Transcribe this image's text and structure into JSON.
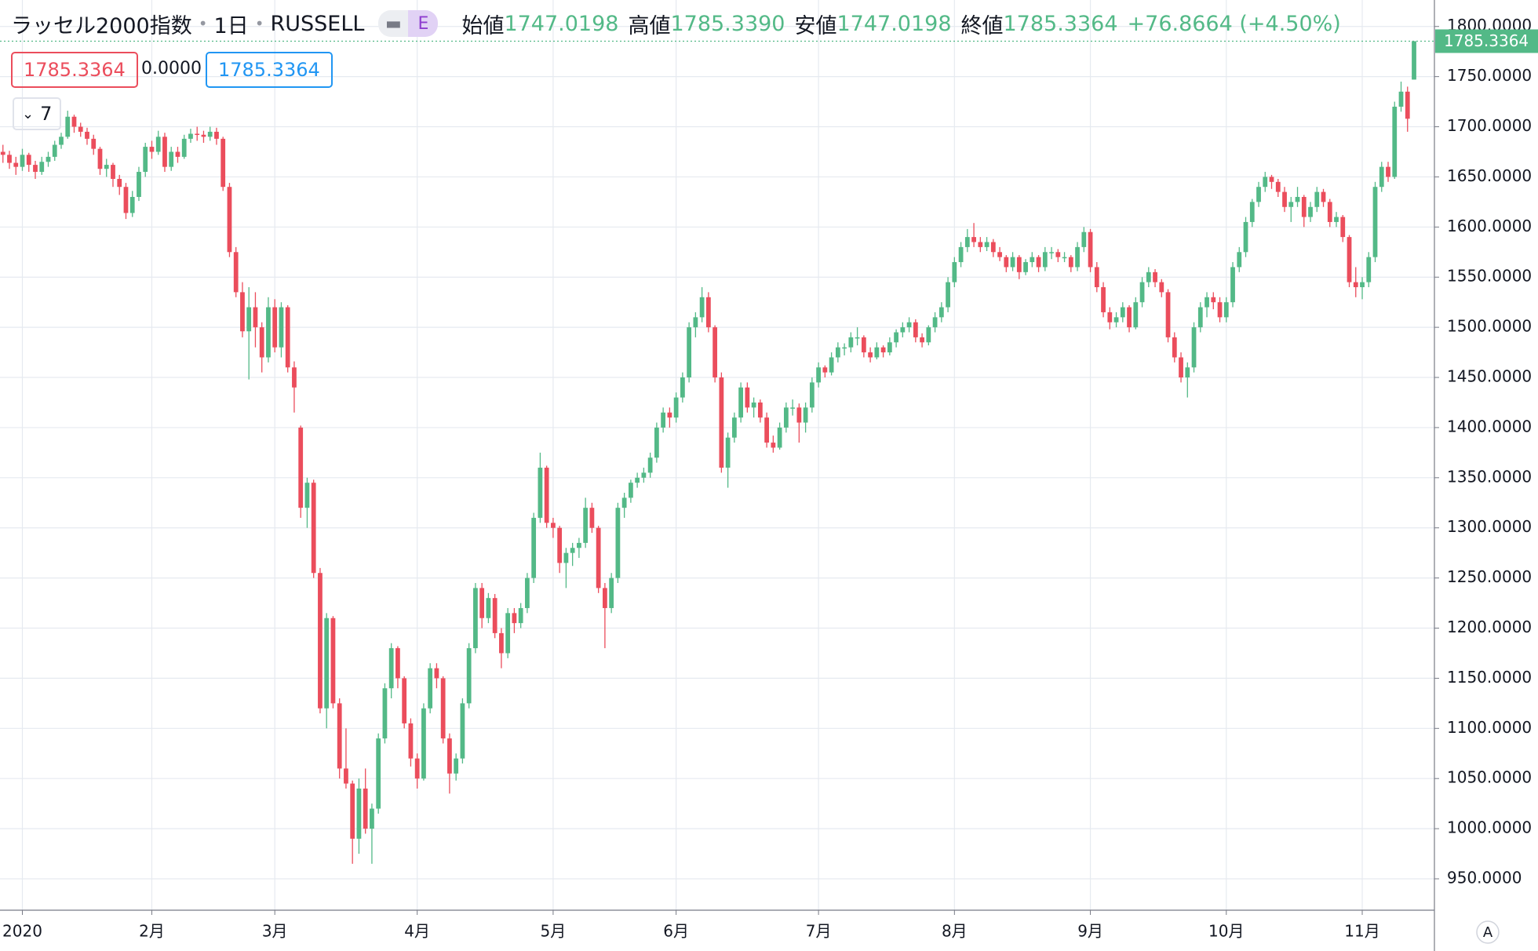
{
  "chart_data": {
    "type": "candlestick",
    "header": {
      "title": "ラッセル2000指数",
      "interval": "1日",
      "symbol": "RUSSELL",
      "badge": "E",
      "open_label": "始値",
      "open": "1747.0198",
      "high_label": "高値",
      "high": "1785.3390",
      "low_label": "安値",
      "low": "1747.0198",
      "close_label": "終値",
      "close": "1785.3364",
      "change": "+76.8664 (+4.50%)"
    },
    "inputs": [
      "1785.3364",
      "0.0000",
      "1785.3364"
    ],
    "collapse_count": "7",
    "scale_mode": "A",
    "up_color": "#53b987",
    "down_color": "#eb4d5c",
    "grid": true,
    "ylim": [
      918.7,
      1826.4
    ],
    "yticks": [
      {
        "value": 950,
        "label": "950.0000"
      },
      {
        "value": 1000,
        "label": "1000.0000"
      },
      {
        "value": 1050,
        "label": "1050.0000"
      },
      {
        "value": 1100,
        "label": "1100.0000"
      },
      {
        "value": 1150,
        "label": "1150.0000"
      },
      {
        "value": 1200,
        "label": "1200.0000"
      },
      {
        "value": 1250,
        "label": "1250.0000"
      },
      {
        "value": 1300,
        "label": "1300.0000"
      },
      {
        "value": 1350,
        "label": "1350.0000"
      },
      {
        "value": 1400,
        "label": "1400.0000"
      },
      {
        "value": 1450,
        "label": "1450.0000"
      },
      {
        "value": 1500,
        "label": "1500.0000"
      },
      {
        "value": 1550,
        "label": "1550.0000"
      },
      {
        "value": 1600,
        "label": "1600.0000"
      },
      {
        "value": 1650,
        "label": "1650.0000"
      },
      {
        "value": 1700,
        "label": "1700.0000"
      },
      {
        "value": 1750,
        "label": "1750.0000"
      },
      {
        "value": 1800,
        "label": "1800.0000"
      }
    ],
    "xticks": [
      {
        "value": 3,
        "label": "2020"
      },
      {
        "value": 23,
        "label": "2月"
      },
      {
        "value": 42,
        "label": "3月"
      },
      {
        "value": 64,
        "label": "4月"
      },
      {
        "value": 85,
        "label": "5月"
      },
      {
        "value": 104,
        "label": "6月"
      },
      {
        "value": 126,
        "label": "7月"
      },
      {
        "value": 147,
        "label": "8月"
      },
      {
        "value": 168,
        "label": "9月"
      },
      {
        "value": 189,
        "label": "10月"
      },
      {
        "value": 210,
        "label": "11月"
      }
    ],
    "ohlc": [
      [
        1675,
        1682,
        1664,
        1672
      ],
      [
        1672,
        1676,
        1658,
        1664
      ],
      [
        1664,
        1670,
        1652,
        1660
      ],
      [
        1660,
        1678,
        1656,
        1672
      ],
      [
        1672,
        1674,
        1655,
        1662
      ],
      [
        1662,
        1666,
        1648,
        1655
      ],
      [
        1655,
        1670,
        1652,
        1665
      ],
      [
        1665,
        1675,
        1660,
        1670
      ],
      [
        1670,
        1686,
        1666,
        1682
      ],
      [
        1682,
        1694,
        1678,
        1690
      ],
      [
        1690,
        1716,
        1688,
        1710
      ],
      [
        1710,
        1712,
        1694,
        1700
      ],
      [
        1700,
        1704,
        1690,
        1695
      ],
      [
        1695,
        1699,
        1682,
        1688
      ],
      [
        1688,
        1692,
        1672,
        1678
      ],
      [
        1678,
        1680,
        1652,
        1658
      ],
      [
        1658,
        1668,
        1650,
        1662
      ],
      [
        1662,
        1664,
        1640,
        1648
      ],
      [
        1648,
        1652,
        1632,
        1640
      ],
      [
        1640,
        1644,
        1608,
        1614
      ],
      [
        1614,
        1636,
        1610,
        1630
      ],
      [
        1630,
        1660,
        1626,
        1655
      ],
      [
        1655,
        1684,
        1650,
        1680
      ],
      [
        1680,
        1686,
        1668,
        1675
      ],
      [
        1675,
        1696,
        1672,
        1690
      ],
      [
        1690,
        1694,
        1655,
        1660
      ],
      [
        1660,
        1680,
        1656,
        1675
      ],
      [
        1675,
        1680,
        1664,
        1670
      ],
      [
        1670,
        1692,
        1668,
        1688
      ],
      [
        1688,
        1698,
        1684,
        1693
      ],
      [
        1693,
        1700,
        1686,
        1692
      ],
      [
        1692,
        1696,
        1684,
        1690
      ],
      [
        1690,
        1700,
        1686,
        1695
      ],
      [
        1695,
        1699,
        1682,
        1688
      ],
      [
        1688,
        1690,
        1636,
        1640
      ],
      [
        1640,
        1644,
        1570,
        1575
      ],
      [
        1575,
        1580,
        1530,
        1535
      ],
      [
        1535,
        1545,
        1490,
        1496
      ],
      [
        1496,
        1540,
        1448,
        1520
      ],
      [
        1520,
        1535,
        1480,
        1500
      ],
      [
        1500,
        1505,
        1455,
        1470
      ],
      [
        1470,
        1530,
        1465,
        1520
      ],
      [
        1520,
        1528,
        1475,
        1480
      ],
      [
        1480,
        1525,
        1470,
        1520
      ],
      [
        1520,
        1522,
        1455,
        1460
      ],
      [
        1460,
        1466,
        1415,
        1440
      ],
      [
        1400,
        1402,
        1310,
        1320
      ],
      [
        1320,
        1350,
        1300,
        1345
      ],
      [
        1345,
        1348,
        1250,
        1255
      ],
      [
        1255,
        1260,
        1115,
        1120
      ],
      [
        1120,
        1215,
        1100,
        1210
      ],
      [
        1210,
        1212,
        1120,
        1125
      ],
      [
        1125,
        1130,
        1050,
        1060
      ],
      [
        1060,
        1100,
        1040,
        1045
      ],
      [
        1045,
        1048,
        965,
        990
      ],
      [
        990,
        1050,
        975,
        1040
      ],
      [
        1040,
        1060,
        995,
        1000
      ],
      [
        1000,
        1025,
        965,
        1020
      ],
      [
        1020,
        1095,
        1015,
        1090
      ],
      [
        1090,
        1145,
        1085,
        1140
      ],
      [
        1140,
        1185,
        1130,
        1180
      ],
      [
        1180,
        1182,
        1140,
        1150
      ],
      [
        1150,
        1152,
        1100,
        1105
      ],
      [
        1105,
        1110,
        1062,
        1070
      ],
      [
        1070,
        1075,
        1040,
        1050
      ],
      [
        1050,
        1125,
        1048,
        1120
      ],
      [
        1120,
        1165,
        1115,
        1160
      ],
      [
        1160,
        1165,
        1140,
        1150
      ],
      [
        1150,
        1152,
        1085,
        1090
      ],
      [
        1090,
        1095,
        1035,
        1055
      ],
      [
        1055,
        1075,
        1048,
        1070
      ],
      [
        1070,
        1130,
        1065,
        1125
      ],
      [
        1125,
        1185,
        1120,
        1180
      ],
      [
        1180,
        1245,
        1175,
        1240
      ],
      [
        1240,
        1245,
        1200,
        1210
      ],
      [
        1210,
        1235,
        1205,
        1230
      ],
      [
        1230,
        1234,
        1190,
        1195
      ],
      [
        1195,
        1200,
        1160,
        1175
      ],
      [
        1175,
        1220,
        1170,
        1215
      ],
      [
        1215,
        1220,
        1195,
        1205
      ],
      [
        1205,
        1225,
        1200,
        1220
      ],
      [
        1220,
        1255,
        1215,
        1250
      ],
      [
        1250,
        1315,
        1245,
        1310
      ],
      [
        1310,
        1375,
        1305,
        1360
      ],
      [
        1360,
        1362,
        1300,
        1305
      ],
      [
        1305,
        1310,
        1290,
        1300
      ],
      [
        1300,
        1302,
        1255,
        1265
      ],
      [
        1265,
        1280,
        1240,
        1275
      ],
      [
        1275,
        1285,
        1262,
        1280
      ],
      [
        1280,
        1290,
        1270,
        1285
      ],
      [
        1285,
        1330,
        1280,
        1320
      ],
      [
        1320,
        1325,
        1295,
        1300
      ],
      [
        1300,
        1302,
        1235,
        1240
      ],
      [
        1240,
        1245,
        1180,
        1220
      ],
      [
        1220,
        1255,
        1215,
        1250
      ],
      [
        1250,
        1325,
        1245,
        1320
      ],
      [
        1320,
        1335,
        1310,
        1330
      ],
      [
        1330,
        1348,
        1325,
        1345
      ],
      [
        1345,
        1355,
        1340,
        1350
      ],
      [
        1350,
        1360,
        1345,
        1355
      ],
      [
        1355,
        1375,
        1350,
        1370
      ],
      [
        1370,
        1405,
        1365,
        1400
      ],
      [
        1400,
        1420,
        1395,
        1415
      ],
      [
        1415,
        1420,
        1400,
        1410
      ],
      [
        1410,
        1435,
        1405,
        1430
      ],
      [
        1430,
        1455,
        1425,
        1450
      ],
      [
        1450,
        1505,
        1445,
        1500
      ],
      [
        1500,
        1515,
        1490,
        1510
      ],
      [
        1510,
        1540,
        1505,
        1530
      ],
      [
        1530,
        1535,
        1495,
        1500
      ],
      [
        1500,
        1502,
        1445,
        1450
      ],
      [
        1450,
        1455,
        1355,
        1360
      ],
      [
        1360,
        1395,
        1340,
        1390
      ],
      [
        1390,
        1415,
        1385,
        1410
      ],
      [
        1410,
        1445,
        1405,
        1440
      ],
      [
        1440,
        1445,
        1415,
        1420
      ],
      [
        1420,
        1430,
        1410,
        1425
      ],
      [
        1425,
        1428,
        1405,
        1410
      ],
      [
        1410,
        1415,
        1380,
        1385
      ],
      [
        1385,
        1392,
        1375,
        1380
      ],
      [
        1380,
        1405,
        1378,
        1400
      ],
      [
        1400,
        1425,
        1395,
        1420
      ],
      [
        1420,
        1428,
        1412,
        1420
      ],
      [
        1420,
        1424,
        1385,
        1405
      ],
      [
        1405,
        1425,
        1395,
        1420
      ],
      [
        1420,
        1450,
        1415,
        1445
      ],
      [
        1445,
        1465,
        1440,
        1460
      ],
      [
        1460,
        1462,
        1450,
        1455
      ],
      [
        1455,
        1475,
        1452,
        1470
      ],
      [
        1470,
        1485,
        1465,
        1480
      ],
      [
        1480,
        1484,
        1472,
        1480
      ],
      [
        1480,
        1495,
        1475,
        1490
      ],
      [
        1490,
        1500,
        1482,
        1490
      ],
      [
        1490,
        1492,
        1470,
        1475
      ],
      [
        1475,
        1480,
        1465,
        1470
      ],
      [
        1470,
        1485,
        1468,
        1480
      ],
      [
        1480,
        1482,
        1470,
        1475
      ],
      [
        1475,
        1490,
        1472,
        1485
      ],
      [
        1485,
        1498,
        1480,
        1495
      ],
      [
        1495,
        1505,
        1490,
        1500
      ],
      [
        1500,
        1510,
        1495,
        1505
      ],
      [
        1505,
        1508,
        1485,
        1490
      ],
      [
        1490,
        1494,
        1480,
        1485
      ],
      [
        1485,
        1502,
        1482,
        1500
      ],
      [
        1500,
        1515,
        1495,
        1510
      ],
      [
        1510,
        1525,
        1505,
        1520
      ],
      [
        1520,
        1550,
        1515,
        1545
      ],
      [
        1545,
        1570,
        1540,
        1565
      ],
      [
        1565,
        1585,
        1560,
        1580
      ],
      [
        1580,
        1598,
        1575,
        1590
      ],
      [
        1590,
        1604,
        1580,
        1585
      ],
      [
        1585,
        1590,
        1575,
        1580
      ],
      [
        1580,
        1590,
        1576,
        1585
      ],
      [
        1585,
        1588,
        1570,
        1575
      ],
      [
        1575,
        1580,
        1566,
        1570
      ],
      [
        1570,
        1572,
        1555,
        1560
      ],
      [
        1560,
        1575,
        1556,
        1570
      ],
      [
        1570,
        1572,
        1548,
        1555
      ],
      [
        1555,
        1568,
        1552,
        1565
      ],
      [
        1565,
        1575,
        1560,
        1570
      ],
      [
        1570,
        1572,
        1555,
        1560
      ],
      [
        1560,
        1580,
        1556,
        1575
      ],
      [
        1575,
        1580,
        1568,
        1575
      ],
      [
        1575,
        1578,
        1565,
        1570
      ],
      [
        1570,
        1575,
        1565,
        1570
      ],
      [
        1570,
        1572,
        1555,
        1560
      ],
      [
        1560,
        1585,
        1556,
        1580
      ],
      [
        1580,
        1600,
        1575,
        1595
      ],
      [
        1595,
        1598,
        1555,
        1560
      ],
      [
        1560,
        1565,
        1535,
        1540
      ],
      [
        1540,
        1545,
        1510,
        1515
      ],
      [
        1515,
        1520,
        1498,
        1505
      ],
      [
        1505,
        1515,
        1500,
        1510
      ],
      [
        1510,
        1525,
        1505,
        1520
      ],
      [
        1520,
        1522,
        1495,
        1500
      ],
      [
        1500,
        1530,
        1498,
        1525
      ],
      [
        1525,
        1550,
        1520,
        1545
      ],
      [
        1545,
        1560,
        1540,
        1555
      ],
      [
        1555,
        1558,
        1540,
        1545
      ],
      [
        1545,
        1548,
        1530,
        1535
      ],
      [
        1535,
        1538,
        1485,
        1490
      ],
      [
        1490,
        1495,
        1465,
        1470
      ],
      [
        1470,
        1475,
        1445,
        1450
      ],
      [
        1450,
        1465,
        1430,
        1460
      ],
      [
        1460,
        1505,
        1455,
        1500
      ],
      [
        1500,
        1525,
        1495,
        1520
      ],
      [
        1520,
        1535,
        1510,
        1530
      ],
      [
        1530,
        1535,
        1518,
        1525
      ],
      [
        1525,
        1530,
        1505,
        1510
      ],
      [
        1510,
        1530,
        1505,
        1525
      ],
      [
        1525,
        1565,
        1520,
        1560
      ],
      [
        1560,
        1580,
        1555,
        1575
      ],
      [
        1575,
        1610,
        1570,
        1605
      ],
      [
        1605,
        1628,
        1600,
        1625
      ],
      [
        1625,
        1645,
        1620,
        1640
      ],
      [
        1640,
        1655,
        1635,
        1650
      ],
      [
        1650,
        1652,
        1638,
        1645
      ],
      [
        1645,
        1648,
        1630,
        1635
      ],
      [
        1635,
        1640,
        1615,
        1620
      ],
      [
        1620,
        1630,
        1605,
        1625
      ],
      [
        1625,
        1640,
        1620,
        1630
      ],
      [
        1630,
        1632,
        1600,
        1610
      ],
      [
        1610,
        1625,
        1605,
        1620
      ],
      [
        1620,
        1640,
        1615,
        1635
      ],
      [
        1635,
        1638,
        1620,
        1625
      ],
      [
        1625,
        1628,
        1600,
        1605
      ],
      [
        1605,
        1615,
        1600,
        1610
      ],
      [
        1610,
        1612,
        1585,
        1590
      ],
      [
        1590,
        1592,
        1540,
        1545
      ],
      [
        1545,
        1560,
        1530,
        1540
      ],
      [
        1540,
        1550,
        1528,
        1545
      ],
      [
        1545,
        1575,
        1540,
        1570
      ],
      [
        1570,
        1645,
        1565,
        1640
      ],
      [
        1640,
        1665,
        1635,
        1660
      ],
      [
        1660,
        1665,
        1645,
        1650
      ],
      [
        1650,
        1725,
        1648,
        1720
      ],
      [
        1720,
        1745,
        1715,
        1735
      ],
      [
        1735,
        1740,
        1695,
        1708
      ],
      [
        1747.0198,
        1785.339,
        1747.0198,
        1785.3364
      ]
    ]
  }
}
